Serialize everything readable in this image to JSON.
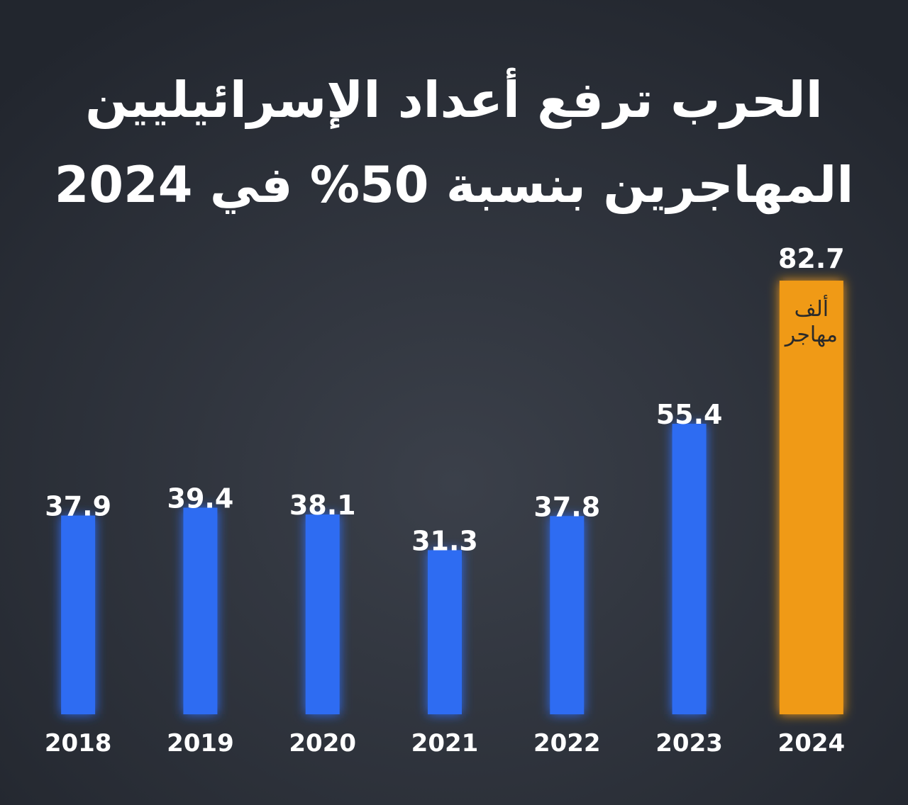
{
  "chart_data": {
    "type": "bar",
    "title": [
      "الحرب ترفع أعداد الإسرائيليين",
      "المهاجرين بنسبة 50% في 2024"
    ],
    "categories": [
      "2018",
      "2019",
      "2020",
      "2021",
      "2022",
      "2023",
      "2024"
    ],
    "values": [
      37.9,
      39.4,
      38.1,
      31.3,
      37.8,
      55.4,
      82.7
    ],
    "colors": [
      "#2f6cf2",
      "#2f6cf2",
      "#2f6cf2",
      "#2f6cf2",
      "#2f6cf2",
      "#2f6cf2",
      "#f09a17"
    ],
    "annotation": [
      "ألف",
      "مهاجر"
    ],
    "ylim": [
      0,
      90
    ]
  }
}
